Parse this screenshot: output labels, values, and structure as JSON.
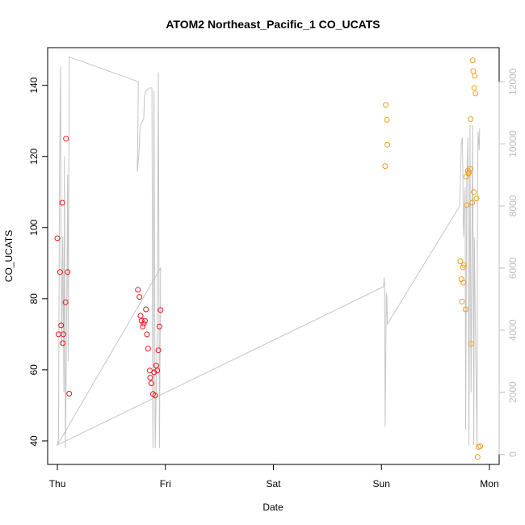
{
  "chart_data": {
    "type": "scatter",
    "title": "ATOM2 Northeast_Pacific_1 CO_UCATS",
    "xlabel": "Date",
    "ylabel": "CO_UCATS",
    "x_tick_labels": [
      "Thu",
      "Fri",
      "Sat",
      "Sun",
      "Mon"
    ],
    "x_tick_days": [
      0,
      1,
      2,
      3,
      4
    ],
    "xlim": [
      -0.09,
      4.09
    ],
    "ylim": [
      33.4,
      150.6
    ],
    "y_ticks": [
      40,
      60,
      80,
      100,
      120,
      140
    ],
    "y2_ticks": [
      0,
      2000,
      4000,
      6000,
      8000,
      10000,
      12000
    ],
    "y2lim": [
      -323,
      13097
    ],
    "grid": false,
    "colors": {
      "red_series": "#e8161c",
      "orange_series": "#f39c1f",
      "altitude_line": "#c4c4c4",
      "right_axis": "#bdbdbd"
    },
    "series": [
      {
        "color_key": "red_series",
        "points": [
          [
            0.0,
            97
          ],
          [
            0.01,
            70
          ],
          [
            0.025,
            87.5
          ],
          [
            0.035,
            72.5
          ],
          [
            0.045,
            107
          ],
          [
            0.05,
            67.5
          ],
          [
            0.055,
            70
          ],
          [
            0.075,
            79
          ],
          [
            0.08,
            125
          ],
          [
            0.095,
            87.5
          ],
          [
            0.11,
            53.3
          ],
          [
            0.745,
            82.5
          ],
          [
            0.76,
            80.5
          ],
          [
            0.77,
            75.2
          ],
          [
            0.78,
            73.8
          ],
          [
            0.79,
            72.2
          ],
          [
            0.8,
            73
          ],
          [
            0.81,
            73.8
          ],
          [
            0.82,
            77
          ],
          [
            0.83,
            70
          ],
          [
            0.84,
            66
          ],
          [
            0.855,
            59.8
          ],
          [
            0.86,
            57.8
          ],
          [
            0.87,
            56.2
          ],
          [
            0.885,
            53.2
          ],
          [
            0.895,
            59.3
          ],
          [
            0.905,
            52.8
          ],
          [
            0.915,
            61.2
          ],
          [
            0.925,
            59.8
          ],
          [
            0.935,
            65.5
          ],
          [
            0.945,
            72.2
          ],
          [
            0.955,
            76.8
          ]
        ]
      },
      {
        "color_key": "orange_series",
        "points": [
          [
            3.035,
            117.3
          ],
          [
            3.04,
            134.5
          ],
          [
            3.05,
            130.3
          ],
          [
            3.055,
            123.3
          ],
          [
            3.73,
            90.5
          ],
          [
            3.74,
            85.5
          ],
          [
            3.745,
            79.2
          ],
          [
            3.755,
            88.8
          ],
          [
            3.76,
            84.5
          ],
          [
            3.765,
            89.5
          ],
          [
            3.78,
            77
          ],
          [
            3.785,
            114.3
          ],
          [
            3.79,
            106.3
          ],
          [
            3.8,
            116
          ],
          [
            3.805,
            115.2
          ],
          [
            3.81,
            115.5
          ],
          [
            3.82,
            116.5
          ],
          [
            3.825,
            130.5
          ],
          [
            3.83,
            67.3
          ],
          [
            3.84,
            107
          ],
          [
            3.845,
            147
          ],
          [
            3.85,
            144
          ],
          [
            3.855,
            110
          ],
          [
            3.86,
            139.3
          ],
          [
            3.865,
            142.7
          ],
          [
            3.87,
            137.7
          ],
          [
            3.88,
            108.2
          ],
          [
            3.89,
            35.5
          ],
          [
            3.9,
            38.3
          ],
          [
            3.915,
            38.5
          ]
        ]
      }
    ],
    "secondary_series": {
      "axis": "right",
      "color_key": "altitude_line",
      "points": [
        [
          0.0,
          300
        ],
        [
          0.01,
          500
        ],
        [
          0.02,
          9000
        ],
        [
          0.03,
          12500
        ],
        [
          0.035,
          6000
        ],
        [
          0.04,
          3500
        ],
        [
          0.05,
          7000
        ],
        [
          0.06,
          2000
        ],
        [
          0.065,
          9600
        ],
        [
          0.07,
          4000
        ],
        [
          0.075,
          200
        ],
        [
          0.08,
          2000
        ],
        [
          0.09,
          6500
        ],
        [
          0.095,
          9000
        ],
        [
          0.1,
          3000
        ],
        [
          0.11,
          12800
        ],
        [
          0.75,
          12000
        ],
        [
          0.74,
          9100
        ],
        [
          0.755,
          9700
        ],
        [
          0.765,
          10500
        ],
        [
          0.78,
          10700
        ],
        [
          0.8,
          10800
        ],
        [
          0.805,
          11500
        ],
        [
          0.82,
          11700
        ],
        [
          0.85,
          11800
        ],
        [
          0.875,
          11800
        ],
        [
          0.885,
          200
        ],
        [
          0.895,
          11700
        ],
        [
          0.905,
          200
        ],
        [
          0.925,
          4000
        ],
        [
          0.935,
          12300
        ],
        [
          0.945,
          200
        ],
        [
          0.955,
          6000
        ],
        [
          0.0,
          300
        ],
        [
          3.02,
          5400
        ],
        [
          3.025,
          5700
        ],
        [
          3.03,
          5400
        ],
        [
          3.035,
          900
        ],
        [
          3.045,
          5200
        ],
        [
          3.05,
          5100
        ],
        [
          3.055,
          4200
        ],
        [
          3.725,
          8000
        ],
        [
          3.74,
          10000
        ],
        [
          3.75,
          10200
        ],
        [
          3.76,
          7000
        ],
        [
          3.775,
          8600
        ],
        [
          3.78,
          800
        ],
        [
          3.79,
          8800
        ],
        [
          3.8,
          10200
        ],
        [
          3.81,
          300
        ],
        [
          3.82,
          10600
        ],
        [
          3.83,
          2000
        ],
        [
          3.845,
          10600
        ],
        [
          3.855,
          300
        ],
        [
          3.86,
          7000
        ],
        [
          3.87,
          4000
        ],
        [
          3.885,
          300
        ],
        [
          3.89,
          9000
        ],
        [
          3.895,
          10400
        ],
        [
          3.905,
          9800
        ],
        [
          3.91,
          10500
        ]
      ]
    }
  }
}
